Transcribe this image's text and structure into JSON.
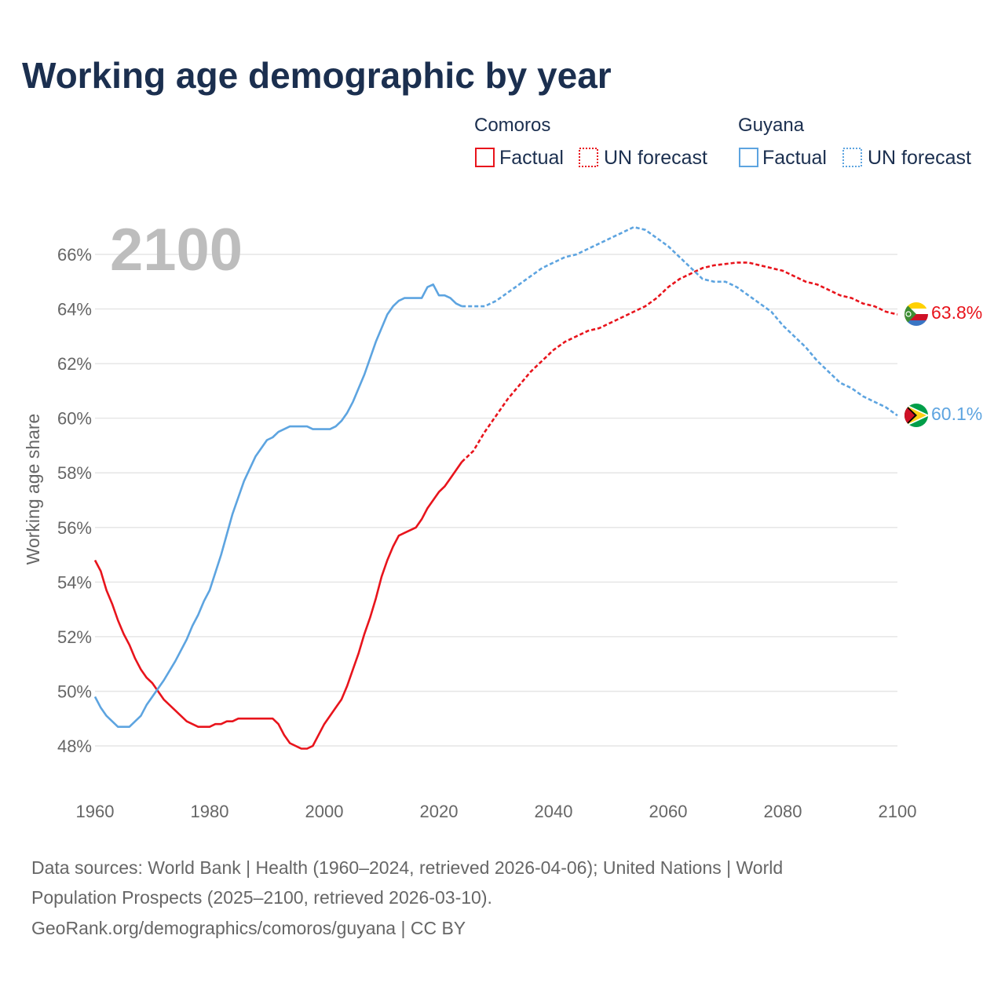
{
  "chart_data": {
    "type": "line",
    "title": "Working age demographic by year",
    "ylabel": "Working age share",
    "xlabel": "",
    "year_display": "2100",
    "x_ticks": [
      "1960",
      "1980",
      "2000",
      "2020",
      "2040",
      "2060",
      "2080",
      "2100"
    ],
    "y_ticks": [
      "48%",
      "50%",
      "52%",
      "54%",
      "56%",
      "58%",
      "60%",
      "62%",
      "64%",
      "66%"
    ],
    "y_tick_values": [
      48,
      50,
      52,
      54,
      56,
      58,
      60,
      62,
      64,
      66
    ],
    "xlim": [
      1960,
      2100
    ],
    "ylim": [
      46.9,
      67.4
    ],
    "grid": true,
    "legend": {
      "groups": [
        {
          "country": "Comoros",
          "factual": "Factual",
          "forecast": "UN forecast",
          "color": "#e8141c"
        },
        {
          "country": "Guyana",
          "factual": "Factual",
          "forecast": "UN forecast",
          "color": "#5da4e0"
        }
      ]
    },
    "series": [
      {
        "name": "Comoros",
        "color": "#e8141c",
        "end_label": "63.8%",
        "factual": {
          "years": [
            1960,
            1961,
            1962,
            1963,
            1964,
            1965,
            1966,
            1967,
            1968,
            1969,
            1970,
            1972,
            1974,
            1976,
            1977,
            1978,
            1980,
            1981,
            1982,
            1983,
            1984,
            1985,
            1987,
            1989,
            1991,
            1992,
            1993,
            1994,
            1996,
            1997,
            1998,
            2000,
            2002,
            2003,
            2004,
            2005,
            2006,
            2007,
            2008,
            2009,
            2010,
            2011,
            2012,
            2013,
            2014,
            2016,
            2017,
            2018,
            2019,
            2020,
            2021,
            2022,
            2023,
            2024
          ],
          "values": [
            54.8,
            54.4,
            53.7,
            53.2,
            52.6,
            52.1,
            51.7,
            51.2,
            50.8,
            50.5,
            50.3,
            49.7,
            49.3,
            48.9,
            48.8,
            48.7,
            48.7,
            48.8,
            48.8,
            48.9,
            48.9,
            49.0,
            49.0,
            49.0,
            49.0,
            48.8,
            48.4,
            48.1,
            47.9,
            47.9,
            48.0,
            48.8,
            49.4,
            49.7,
            50.2,
            50.8,
            51.4,
            52.1,
            52.7,
            53.4,
            54.2,
            54.8,
            55.3,
            55.7,
            55.8,
            56.0,
            56.3,
            56.7,
            57.0,
            57.3,
            57.5,
            57.8,
            58.1,
            58.4
          ]
        },
        "forecast": {
          "years": [
            2024,
            2026,
            2028,
            2030,
            2032,
            2034,
            2036,
            2038,
            2040,
            2042,
            2044,
            2046,
            2048,
            2050,
            2052,
            2054,
            2056,
            2058,
            2060,
            2062,
            2064,
            2066,
            2068,
            2070,
            2072,
            2074,
            2076,
            2078,
            2080,
            2082,
            2084,
            2086,
            2088,
            2090,
            2092,
            2094,
            2096,
            2098,
            2100
          ],
          "values": [
            58.4,
            58.8,
            59.5,
            60.1,
            60.7,
            61.2,
            61.7,
            62.1,
            62.5,
            62.8,
            63.0,
            63.2,
            63.3,
            63.5,
            63.7,
            63.9,
            64.1,
            64.4,
            64.8,
            65.1,
            65.3,
            65.5,
            65.6,
            65.65,
            65.7,
            65.7,
            65.6,
            65.5,
            65.4,
            65.2,
            65.0,
            64.9,
            64.7,
            64.5,
            64.4,
            64.2,
            64.1,
            63.9,
            63.8
          ]
        }
      },
      {
        "name": "Guyana",
        "color": "#5da4e0",
        "end_label": "60.1%",
        "factual": {
          "years": [
            1960,
            1961,
            1962,
            1963,
            1964,
            1965,
            1966,
            1967,
            1968,
            1969,
            1970,
            1972,
            1974,
            1976,
            1977,
            1978,
            1979,
            1980,
            1982,
            1984,
            1986,
            1988,
            1990,
            1991,
            1992,
            1993,
            1994,
            1995,
            1996,
            1997,
            1998,
            1999,
            2000,
            2001,
            2002,
            2003,
            2004,
            2005,
            2006,
            2007,
            2008,
            2009,
            2010,
            2011,
            2012,
            2013,
            2014,
            2015,
            2016,
            2017,
            2018,
            2019,
            2020,
            2021,
            2022,
            2023,
            2024
          ],
          "values": [
            49.8,
            49.4,
            49.1,
            48.9,
            48.7,
            48.7,
            48.7,
            48.9,
            49.1,
            49.5,
            49.8,
            50.4,
            51.1,
            51.9,
            52.4,
            52.8,
            53.3,
            53.7,
            55.0,
            56.5,
            57.7,
            58.6,
            59.2,
            59.3,
            59.5,
            59.6,
            59.7,
            59.7,
            59.7,
            59.7,
            59.6,
            59.6,
            59.6,
            59.6,
            59.7,
            59.9,
            60.2,
            60.6,
            61.1,
            61.6,
            62.2,
            62.8,
            63.3,
            63.8,
            64.1,
            64.3,
            64.4,
            64.4,
            64.4,
            64.4,
            64.8,
            64.9,
            64.5,
            64.5,
            64.4,
            64.2,
            64.1
          ]
        },
        "forecast": {
          "years": [
            2024,
            2026,
            2028,
            2030,
            2032,
            2034,
            2036,
            2038,
            2040,
            2042,
            2044,
            2046,
            2048,
            2050,
            2052,
            2054,
            2056,
            2058,
            2060,
            2062,
            2064,
            2066,
            2068,
            2070,
            2072,
            2074,
            2076,
            2078,
            2080,
            2082,
            2084,
            2086,
            2088,
            2090,
            2092,
            2094,
            2096,
            2098,
            2100
          ],
          "values": [
            64.1,
            64.1,
            64.1,
            64.3,
            64.6,
            64.9,
            65.2,
            65.5,
            65.7,
            65.9,
            66.0,
            66.2,
            66.4,
            66.6,
            66.8,
            67.0,
            66.9,
            66.6,
            66.3,
            65.9,
            65.5,
            65.1,
            65.0,
            65.0,
            64.8,
            64.5,
            64.2,
            63.9,
            63.4,
            63.0,
            62.6,
            62.1,
            61.7,
            61.3,
            61.1,
            60.8,
            60.6,
            60.4,
            60.1
          ]
        }
      }
    ]
  },
  "source": {
    "line1": "Data sources: World Bank | Health (1960–2024, retrieved 2026-04-06); United Nations | World",
    "line2": "Population Prospects (2025–2100, retrieved 2026-03-10).",
    "line3": "GeoRank.org/demographics/comoros/guyana | CC BY"
  }
}
